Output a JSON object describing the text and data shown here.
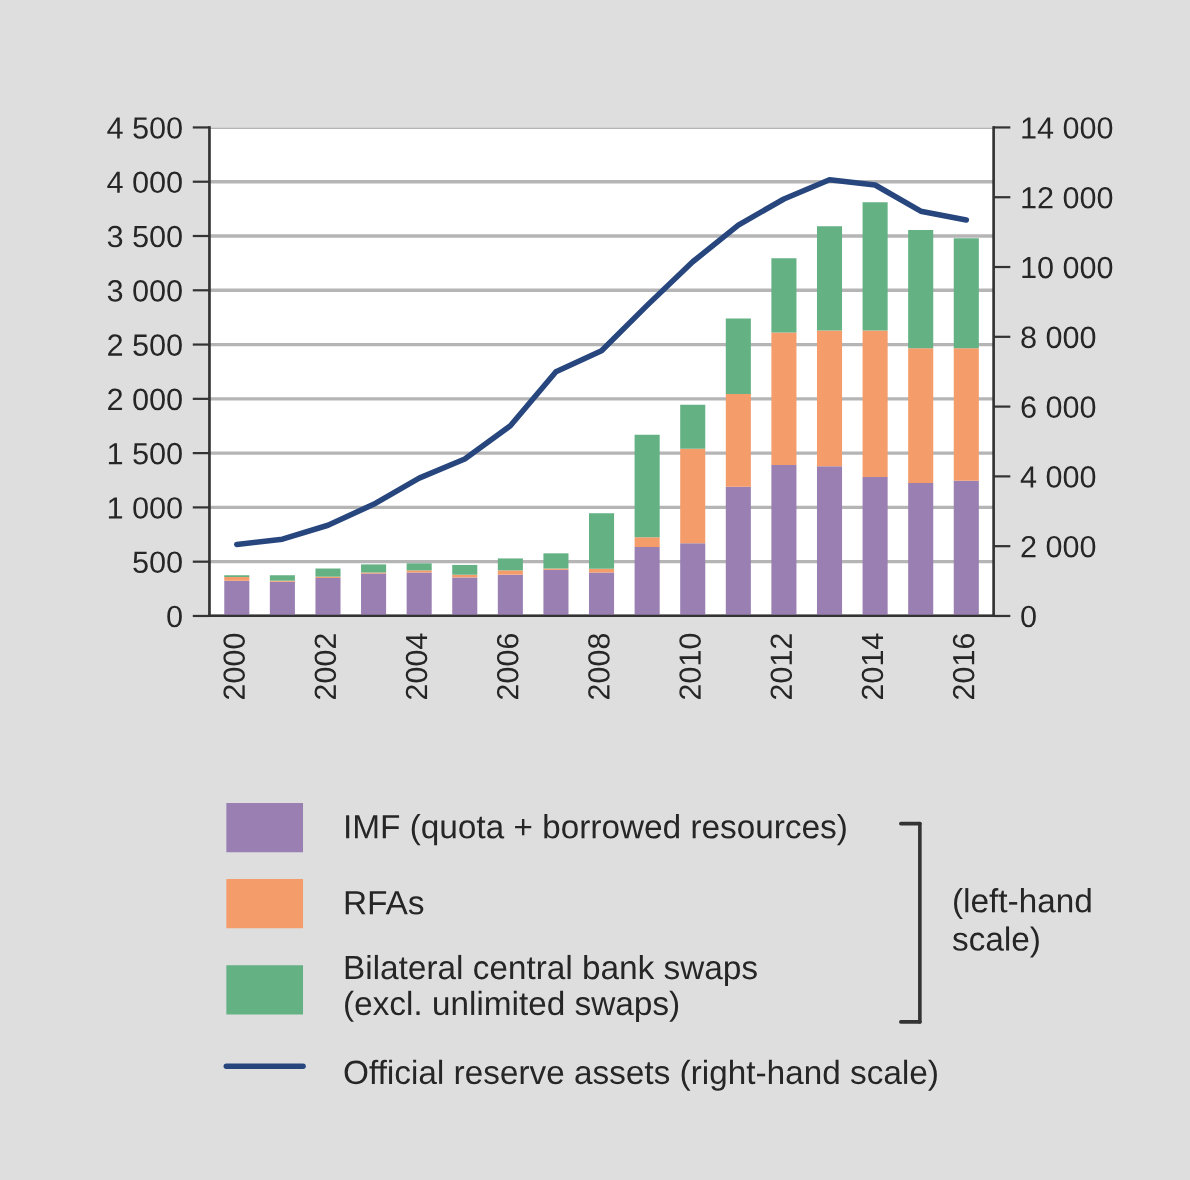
{
  "chart_data": {
    "type": "bar",
    "stacked": true,
    "categories": [
      "2000",
      null,
      "2002",
      null,
      "2004",
      null,
      "2006",
      null,
      "2008",
      null,
      "2010",
      null,
      "2012",
      null,
      "2014",
      null,
      "2016"
    ],
    "series": [
      {
        "name": "IMF (quota + borrowed resources)",
        "color": "#9a80b2",
        "values": [
          325,
          315,
          350,
          390,
          400,
          355,
          380,
          425,
          400,
          635,
          670,
          1190,
          1390,
          1380,
          1280,
          1225,
          1245
        ]
      },
      {
        "name": "RFAs",
        "color": "#f59c6b",
        "values": [
          35,
          10,
          12,
          10,
          20,
          25,
          40,
          12,
          35,
          90,
          870,
          855,
          1220,
          1250,
          1350,
          1240,
          1220
        ]
      },
      {
        "name": "Bilateral central bank swaps\n(excl. unlimited swaps)",
        "color": "#64b184",
        "values": [
          15,
          50,
          75,
          75,
          65,
          90,
          110,
          140,
          510,
          945,
          405,
          695,
          685,
          960,
          1180,
          1090,
          1015
        ]
      },
      {
        "name": "Official reserve assets (right-hand scale)",
        "type": "line",
        "axis": "y2",
        "color": "#27467e",
        "values": [
          2050,
          2200,
          2600,
          3200,
          3950,
          4500,
          5450,
          7000,
          7600,
          8900,
          10150,
          11200,
          11950,
          12500,
          12350,
          11600,
          11350
        ]
      }
    ],
    "ylim": [
      0,
      4500
    ],
    "yticks": [
      0,
      500,
      {
        "value": 1000,
        "label": "1 000"
      },
      {
        "value": 1500,
        "label": "1 500"
      },
      {
        "value": 2000,
        "label": "2 000"
      },
      {
        "value": 2500,
        "label": "2 500"
      },
      {
        "value": 3000,
        "label": "3 000"
      },
      {
        "value": 3500,
        "label": "3 500"
      },
      {
        "value": 4000,
        "label": "4 000"
      },
      {
        "value": 4500,
        "label": "4 500"
      }
    ],
    "y2lim": [
      0,
      14000
    ],
    "y2ticks": [
      0,
      {
        "value": 2000,
        "label": "2 000"
      },
      {
        "value": 4000,
        "label": "4 000"
      },
      {
        "value": 6000,
        "label": "6 000"
      },
      {
        "value": 8000,
        "label": "8 000"
      },
      {
        "value": 10000,
        "label": "10 000"
      },
      {
        "value": 12000,
        "label": "12 000"
      },
      {
        "value": 14000,
        "label": "14 000"
      }
    ],
    "grid": "y",
    "legend": "bottom",
    "annotations": [
      "(left-hand\nscale)"
    ]
  }
}
